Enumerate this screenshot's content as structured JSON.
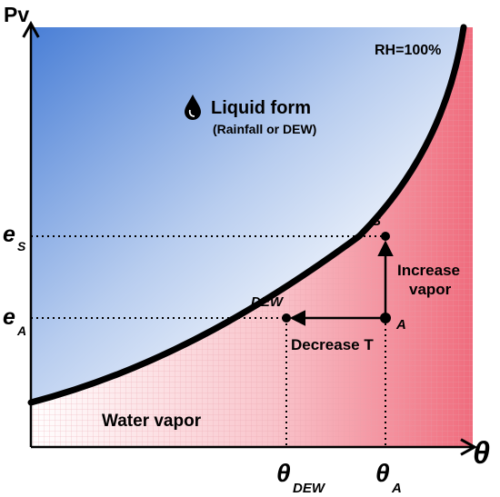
{
  "axes": {
    "y_label": "Pv",
    "x_label": "θ"
  },
  "curve_label": "RH=100%",
  "regions": {
    "liquid_title": "Liquid form",
    "liquid_subtitle": "(Rainfall or DEW)",
    "vapor_label": "Water vapor"
  },
  "y_ticks": {
    "es_main": "e",
    "es_sub": "S",
    "ea_main": "e",
    "ea_sub": "A"
  },
  "x_ticks": {
    "dew_main": "θ",
    "dew_sub": "DEW",
    "a_main": "θ",
    "a_sub": "A"
  },
  "points": {
    "s_label": "S",
    "dew_label": "DEW",
    "a_label": "A"
  },
  "arrows": {
    "decrease_label": "Decrease T",
    "increase_line1": "Increase",
    "increase_line2": "vapor"
  },
  "icons": {
    "droplet": "droplet-icon"
  },
  "colors": {
    "liquid_blue": "#4a7fd6",
    "vapor_red": "#f06c7d",
    "curve": "#000000"
  }
}
